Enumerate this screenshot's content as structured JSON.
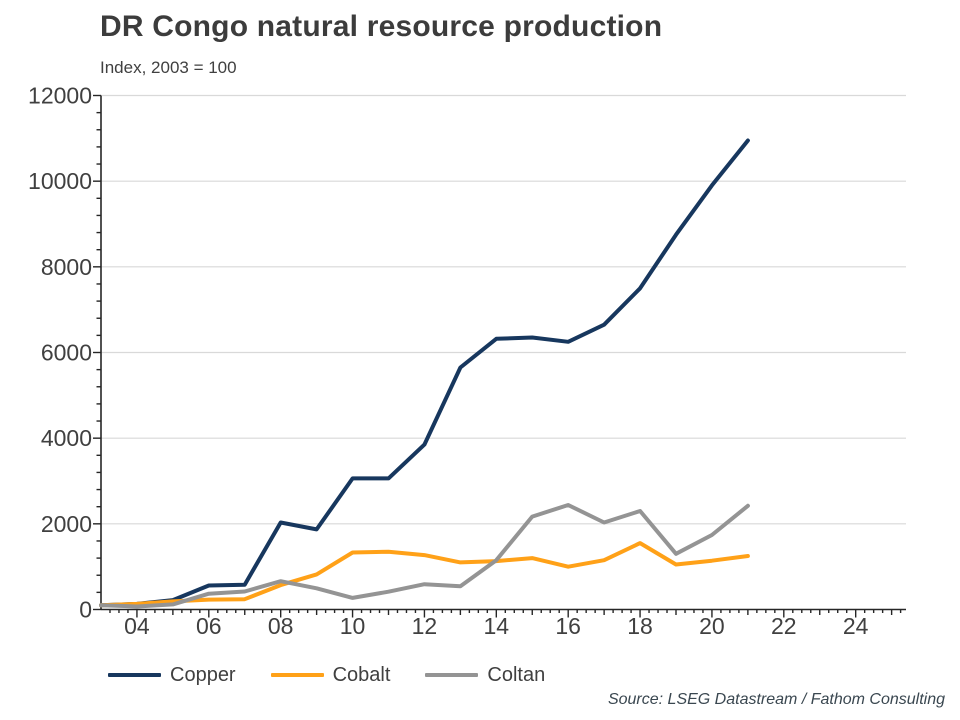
{
  "header": {
    "title": "DR Congo natural resource production",
    "subtitle": "Index, 2003 = 100"
  },
  "source": "Source: LSEG Datastream / Fathom Consulting",
  "colors": {
    "copper": "#17375E",
    "cobalt": "#FFA118",
    "coltan": "#949494",
    "grid": "#D9D9D9",
    "axis": "#262626",
    "tick_text": "#404040"
  },
  "legend": {
    "items": [
      {
        "label": "Copper",
        "color_key": "copper"
      },
      {
        "label": "Cobalt",
        "color_key": "cobalt"
      },
      {
        "label": "Coltan",
        "color_key": "coltan"
      }
    ]
  },
  "chart_data": {
    "type": "line",
    "title": "DR Congo natural resource production",
    "subtitle": "Index, 2003 = 100",
    "x": [
      2003,
      2004,
      2005,
      2006,
      2007,
      2008,
      2009,
      2010,
      2011,
      2012,
      2013,
      2014,
      2015,
      2016,
      2017,
      2018,
      2019,
      2020,
      2021
    ],
    "series": [
      {
        "name": "Copper",
        "color_key": "copper",
        "values": [
          100,
          130,
          220,
          560,
          580,
          2030,
          1870,
          3060,
          3060,
          3850,
          5650,
          6320,
          6350,
          6250,
          6650,
          7500,
          8750,
          9900,
          10950
        ]
      },
      {
        "name": "Cobalt",
        "color_key": "cobalt",
        "values": [
          100,
          130,
          190,
          230,
          240,
          570,
          820,
          1330,
          1350,
          1270,
          1100,
          1130,
          1200,
          1000,
          1150,
          1550,
          1050,
          1140,
          1250
        ]
      },
      {
        "name": "Coltan",
        "color_key": "coltan",
        "values": [
          100,
          70,
          120,
          370,
          420,
          660,
          495,
          270,
          415,
          590,
          545,
          1150,
          2170,
          2440,
          2030,
          2300,
          1300,
          1740,
          2420
        ]
      }
    ],
    "xlim": [
      2003,
      2025.4
    ],
    "ylim": [
      0,
      12000
    ],
    "x_tick_years": [
      2004,
      2006,
      2008,
      2010,
      2012,
      2014,
      2016,
      2018,
      2020,
      2022,
      2024
    ],
    "x_tick_labels": [
      "04",
      "06",
      "08",
      "10",
      "12",
      "14",
      "16",
      "18",
      "20",
      "22",
      "24"
    ],
    "x_minor_step": 0.25,
    "y_ticks": [
      0,
      2000,
      4000,
      6000,
      8000,
      10000,
      12000
    ],
    "y_tick_labels": [
      "0",
      "2000",
      "4000",
      "6000",
      "8000",
      "10000",
      "12000"
    ],
    "y_minor_step": 400,
    "grid": "horizontal-only",
    "legend_position": "bottom-left"
  }
}
